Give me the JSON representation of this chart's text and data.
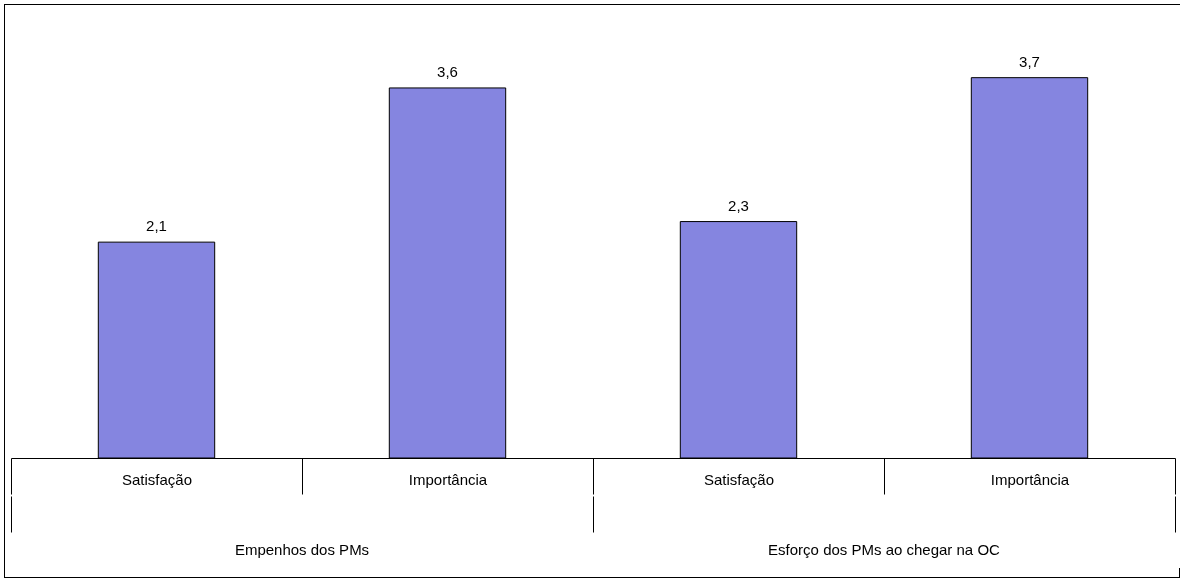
{
  "chart_data": {
    "type": "bar",
    "categories": [
      "Satisfação",
      "Importância",
      "Satisfação",
      "Importância"
    ],
    "values": [
      2.1,
      3.6,
      2.3,
      3.7
    ],
    "value_labels": [
      "2,1",
      "3,6",
      "2,3",
      "3,7"
    ],
    "color": "#8585e0",
    "tick_labels": "x",
    "annotations": [
      "Empenhos dos PMs",
      "Esforço dos PMs ao chegar na OC"
    ]
  }
}
